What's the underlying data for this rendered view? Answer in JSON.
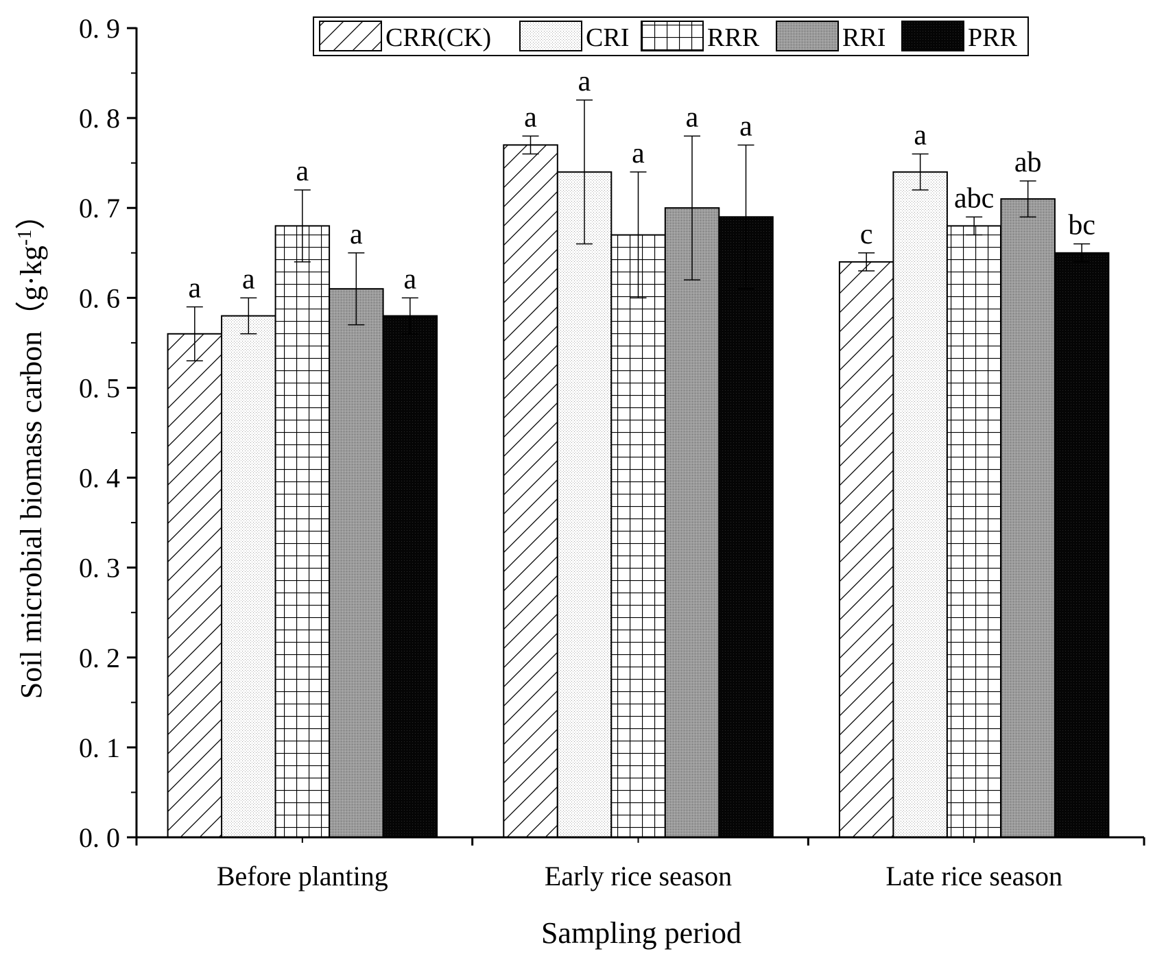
{
  "chart_data": {
    "type": "bar",
    "title": "",
    "xlabel": "Sampling period",
    "ylabel": "Soil microbial biomass carbon（g·kg",
    "ylabel_sup": "-1",
    "ylabel_close": "）",
    "ylim": [
      0,
      0.9
    ],
    "yticks": [
      {
        "value": 0.0,
        "label": "0. 0"
      },
      {
        "value": 0.1,
        "label": "0. 1"
      },
      {
        "value": 0.2,
        "label": "0. 2"
      },
      {
        "value": 0.3,
        "label": "0. 3"
      },
      {
        "value": 0.4,
        "label": "0. 4"
      },
      {
        "value": 0.5,
        "label": "0. 5"
      },
      {
        "value": 0.6,
        "label": "0. 6"
      },
      {
        "value": 0.7,
        "label": "0. 7"
      },
      {
        "value": 0.8,
        "label": "0. 8"
      },
      {
        "value": 0.9,
        "label": "0. 9"
      }
    ],
    "categories": [
      "Before planting",
      "Early rice season",
      "Late rice season"
    ],
    "legend_position": "top-right",
    "series": [
      {
        "name": "CRR(CK)",
        "pattern": "hatch-diagonal",
        "values": [
          0.56,
          0.77,
          0.64
        ],
        "errors": [
          0.03,
          0.01,
          0.01
        ],
        "sig": [
          "a",
          "a",
          "c"
        ]
      },
      {
        "name": "CRI",
        "pattern": "dots",
        "values": [
          0.58,
          0.74,
          0.74
        ],
        "errors": [
          0.02,
          0.08,
          0.02
        ],
        "sig": [
          "a",
          "a",
          "a"
        ]
      },
      {
        "name": "RRR",
        "pattern": "grid",
        "values": [
          0.68,
          0.67,
          0.68
        ],
        "errors": [
          0.04,
          0.07,
          0.01
        ],
        "sig": [
          "a",
          "a",
          "abc"
        ]
      },
      {
        "name": "RRI",
        "pattern": "gray-dots",
        "values": [
          0.61,
          0.7,
          0.71
        ],
        "errors": [
          0.04,
          0.08,
          0.02
        ],
        "sig": [
          "a",
          "a",
          "ab"
        ]
      },
      {
        "name": "PRR",
        "pattern": "black",
        "values": [
          0.58,
          0.69,
          0.65
        ],
        "errors": [
          0.02,
          0.08,
          0.01
        ],
        "sig": [
          "a",
          "a",
          "bc"
        ]
      }
    ]
  }
}
